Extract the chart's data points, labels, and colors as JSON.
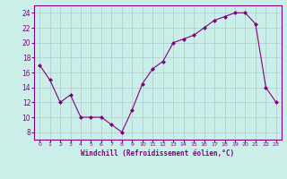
{
  "x": [
    0,
    1,
    2,
    3,
    4,
    5,
    6,
    7,
    8,
    9,
    10,
    11,
    12,
    13,
    14,
    15,
    16,
    17,
    18,
    19,
    20,
    21,
    22,
    23
  ],
  "y": [
    17,
    15,
    12,
    13,
    10,
    10,
    10,
    9,
    8,
    11,
    14.5,
    16.5,
    17.5,
    20,
    20.5,
    21,
    22,
    23,
    23.5,
    24,
    24,
    22.5,
    14,
    12
  ],
  "line_color": "#800080",
  "marker_color": "#800080",
  "bg_color": "#cceee8",
  "grid_color": "#aacccc",
  "xlabel": "Windchill (Refroidissement éolien,°C)",
  "ylim": [
    7,
    25
  ],
  "xlim": [
    -0.5,
    23.5
  ],
  "yticks": [
    8,
    10,
    12,
    14,
    16,
    18,
    20,
    22,
    24
  ],
  "xtick_labels": [
    "0",
    "1",
    "2",
    "3",
    "4",
    "5",
    "6",
    "7",
    "8",
    "9",
    "10",
    "11",
    "12",
    "13",
    "14",
    "15",
    "16",
    "17",
    "18",
    "19",
    "20",
    "21",
    "22",
    "23"
  ],
  "axis_color": "#800080",
  "font_color": "#800080"
}
